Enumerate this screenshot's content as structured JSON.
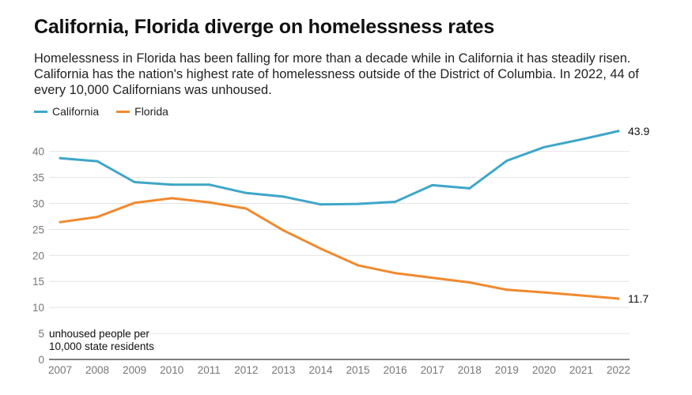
{
  "header": {
    "title": "California, Florida diverge on homelessness rates",
    "subtitle": "Homelessness in Florida has been falling for more than a decade while in California it has steadily risen. California has the nation's highest rate of homelessness outside of the District of Columbia. In 2022, 44 of every 10,000 Californians was unhoused."
  },
  "chart_data": {
    "type": "line",
    "title": "California, Florida diverge on homelessness rates",
    "ylabel": "unhoused people per 10,000 state residents",
    "xlabel": "",
    "x": [
      2007,
      2008,
      2009,
      2010,
      2011,
      2012,
      2013,
      2014,
      2015,
      2016,
      2017,
      2018,
      2019,
      2020,
      2021,
      2022
    ],
    "ylim": [
      0,
      45
    ],
    "yticks": [
      0,
      5,
      10,
      15,
      20,
      25,
      30,
      35,
      40
    ],
    "ylabel_lines": [
      "unhoused people per",
      "10,000 state residents"
    ],
    "grid": true,
    "legend_position": "top-left",
    "series": [
      {
        "name": "California",
        "color": "#3ea6c8",
        "values": [
          38.7,
          38.1,
          34.1,
          33.6,
          33.6,
          32.0,
          31.3,
          29.8,
          29.9,
          30.3,
          33.5,
          32.9,
          38.2,
          40.8,
          42.3,
          43.9
        ],
        "end_label": "43.9"
      },
      {
        "name": "Florida",
        "color": "#f0892f",
        "values": [
          26.4,
          27.4,
          30.1,
          31.0,
          30.2,
          29.0,
          24.8,
          21.3,
          18.1,
          16.6,
          15.7,
          14.8,
          13.4,
          12.9,
          12.3,
          11.7
        ],
        "end_label": "11.7"
      }
    ]
  }
}
